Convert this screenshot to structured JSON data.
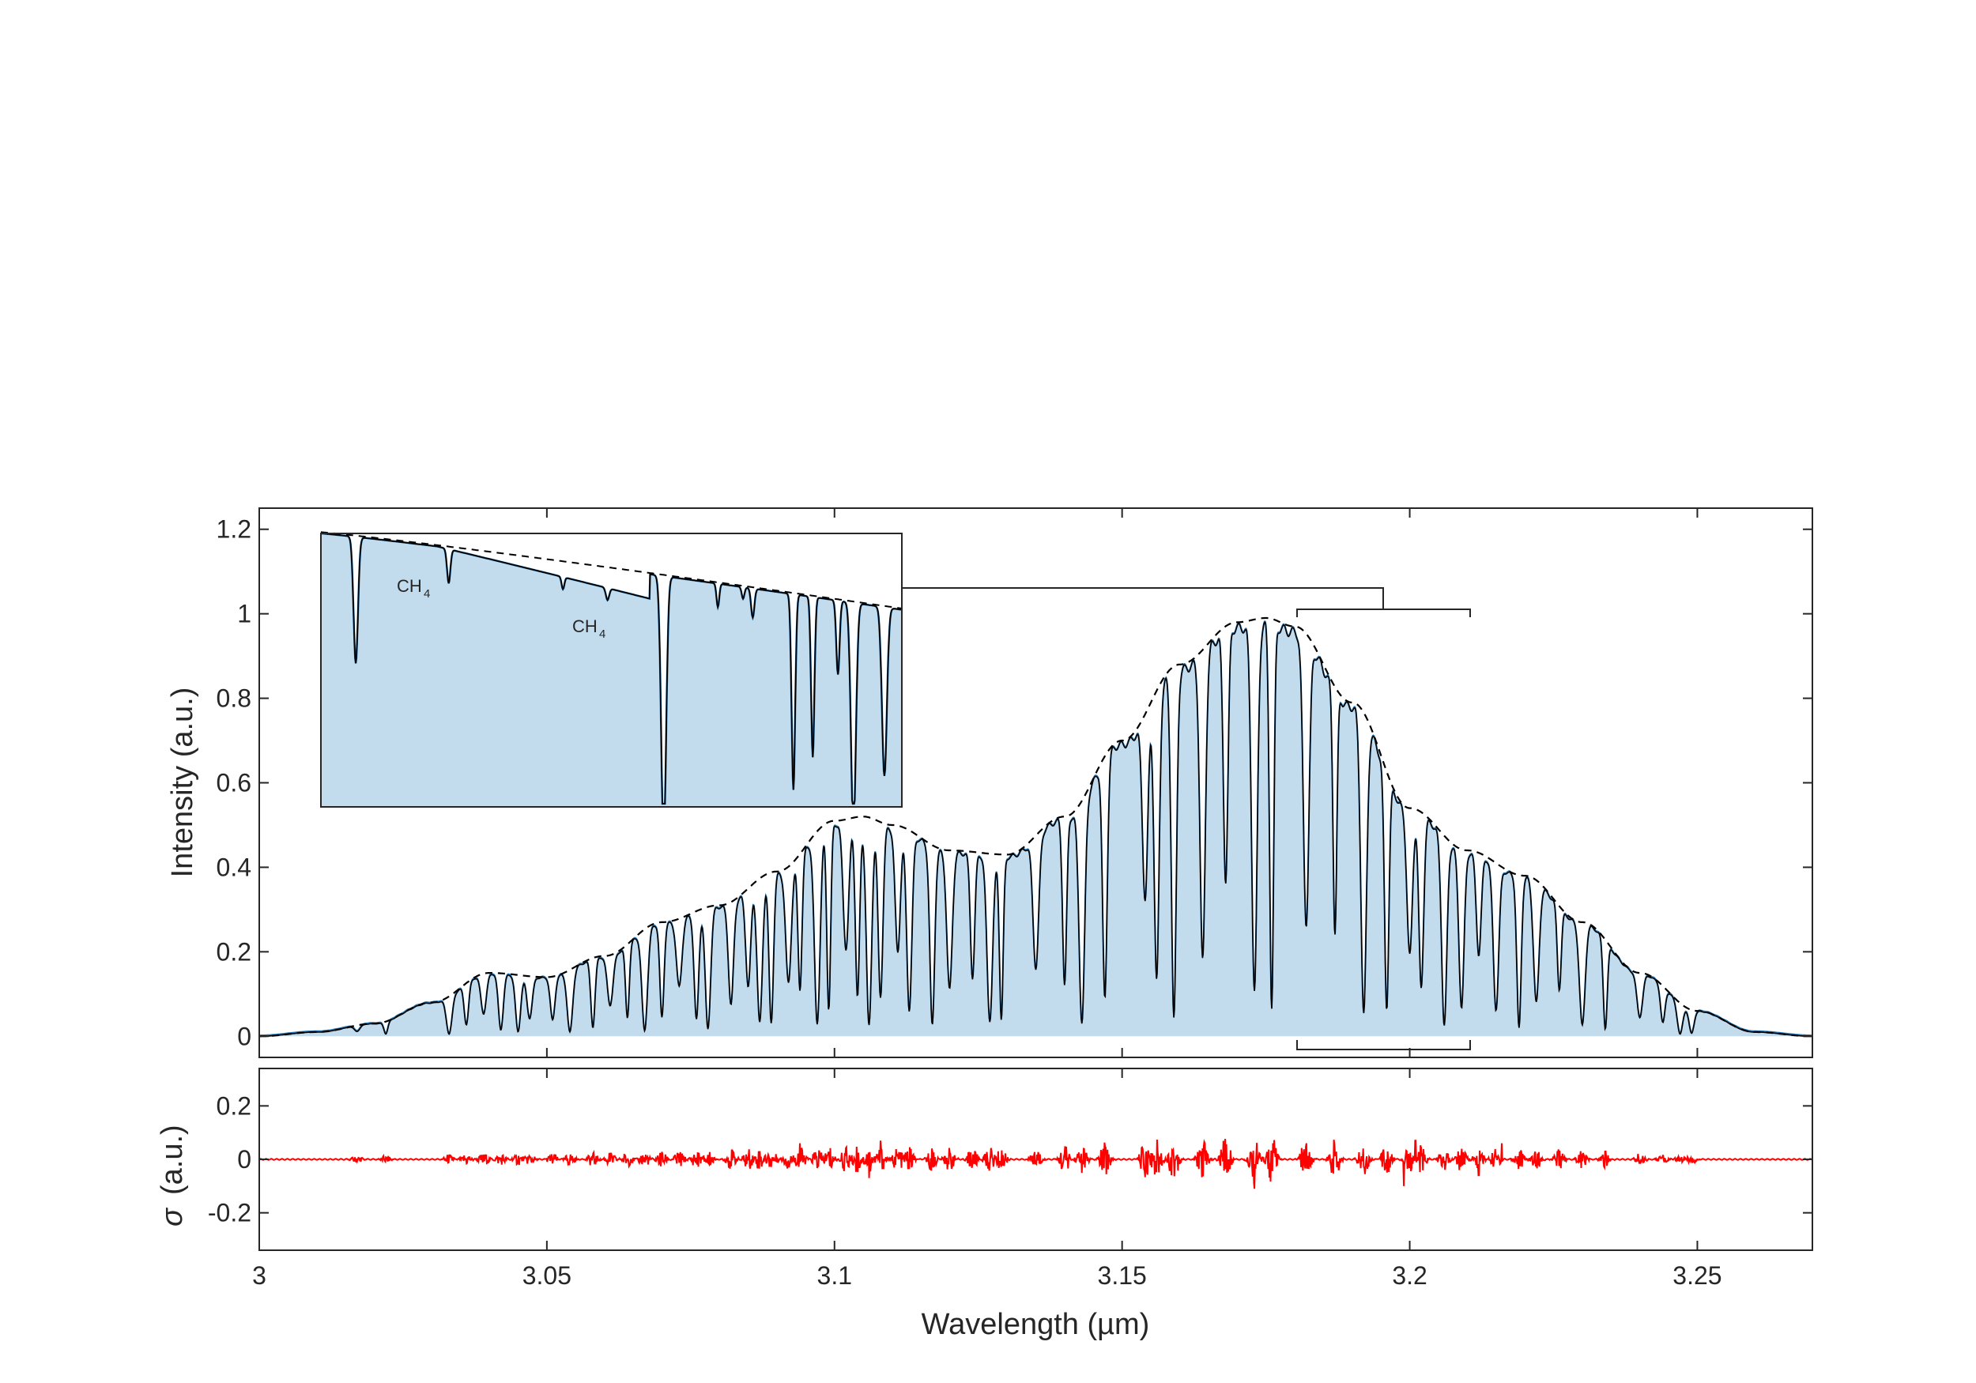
{
  "chart_data": [
    {
      "panel": "main",
      "type": "area",
      "xlabel": "Wavelength (µm)",
      "ylabel": "Intensity (a.u.)",
      "xlim": [
        3.0,
        3.27
      ],
      "ylim": [
        -0.05,
        1.25
      ],
      "xticks": [
        3,
        3.05,
        3.1,
        3.15,
        3.2,
        3.25
      ],
      "xtick_labels": [
        "3",
        "3.05",
        "3.1",
        "3.15",
        "3.2",
        "3.25"
      ],
      "yticks": [
        0,
        0.2,
        0.4,
        0.6,
        0.8,
        1,
        1.2
      ],
      "ytick_labels": [
        "0",
        "0.2",
        "0.4",
        "0.6",
        "0.8",
        "1",
        "1.2"
      ],
      "grid": false,
      "colors": {
        "fill": "#c2dcee",
        "measured": "#1f77b4",
        "fit": "#000000",
        "envelope": "#000000"
      },
      "envelope": {
        "x": [
          3.0,
          3.01,
          3.02,
          3.03,
          3.04,
          3.05,
          3.06,
          3.07,
          3.08,
          3.09,
          3.1,
          3.105,
          3.11,
          3.12,
          3.13,
          3.14,
          3.15,
          3.16,
          3.17,
          3.175,
          3.18,
          3.19,
          3.2,
          3.21,
          3.22,
          3.23,
          3.24,
          3.25,
          3.26,
          3.27
        ],
        "y": [
          0.0,
          0.01,
          0.03,
          0.08,
          0.15,
          0.14,
          0.19,
          0.27,
          0.31,
          0.39,
          0.51,
          0.52,
          0.5,
          0.44,
          0.43,
          0.52,
          0.7,
          0.88,
          0.98,
          0.99,
          0.97,
          0.79,
          0.54,
          0.44,
          0.38,
          0.27,
          0.15,
          0.06,
          0.01,
          0.0
        ]
      },
      "absorption_lines": [
        3.017,
        3.022,
        3.033,
        3.036,
        3.039,
        3.042,
        3.045,
        3.047,
        3.051,
        3.054,
        3.058,
        3.061,
        3.064,
        3.067,
        3.07,
        3.073,
        3.076,
        3.078,
        3.082,
        3.085,
        3.087,
        3.089,
        3.092,
        3.094,
        3.097,
        3.099,
        3.102,
        3.104,
        3.106,
        3.108,
        3.111,
        3.113,
        3.117,
        3.12,
        3.124,
        3.127,
        3.129,
        3.135,
        3.14,
        3.143,
        3.147,
        3.154,
        3.156,
        3.159,
        3.164,
        3.168,
        3.173,
        3.176,
        3.182,
        3.187,
        3.192,
        3.196,
        3.2,
        3.202,
        3.206,
        3.209,
        3.212,
        3.215,
        3.219,
        3.222,
        3.226,
        3.23,
        3.234,
        3.24,
        3.244,
        3.247,
        3.249
      ],
      "annotation": "CH4 lines detail in inset; brackets mark zoom region 3.18–3.21 µm"
    },
    {
      "panel": "inset",
      "type": "area",
      "xlim": [
        3.18,
        3.21
      ],
      "labels": [
        {
          "text": "CH",
          "sub": "4"
        },
        {
          "text": "CH",
          "sub": "4"
        }
      ]
    },
    {
      "panel": "residual",
      "type": "line",
      "xlabel": "Wavelength (µm)",
      "ylabel_symbol": "σ",
      "ylabel_units": "(a.u.)",
      "xlim": [
        3.0,
        3.27
      ],
      "ylim": [
        -0.34,
        0.34
      ],
      "yticks": [
        0.2,
        0,
        -0.2
      ],
      "ytick_labels": [
        "0.2",
        "0",
        "-0.2"
      ],
      "color": "#ff0000",
      "spikes": [
        {
          "x": 3.182,
          "y": -0.18
        },
        {
          "x": 3.182,
          "y": 0.06
        },
        {
          "x": 3.173,
          "y": -0.11
        },
        {
          "x": 3.106,
          "y": -0.07
        },
        {
          "x": 3.108,
          "y": 0.07
        },
        {
          "x": 3.199,
          "y": -0.1
        },
        {
          "x": 3.201,
          "y": 0.07
        },
        {
          "x": 3.094,
          "y": 0.06
        },
        {
          "x": 3.212,
          "y": -0.06
        },
        {
          "x": 3.216,
          "y": 0.06
        }
      ]
    }
  ]
}
